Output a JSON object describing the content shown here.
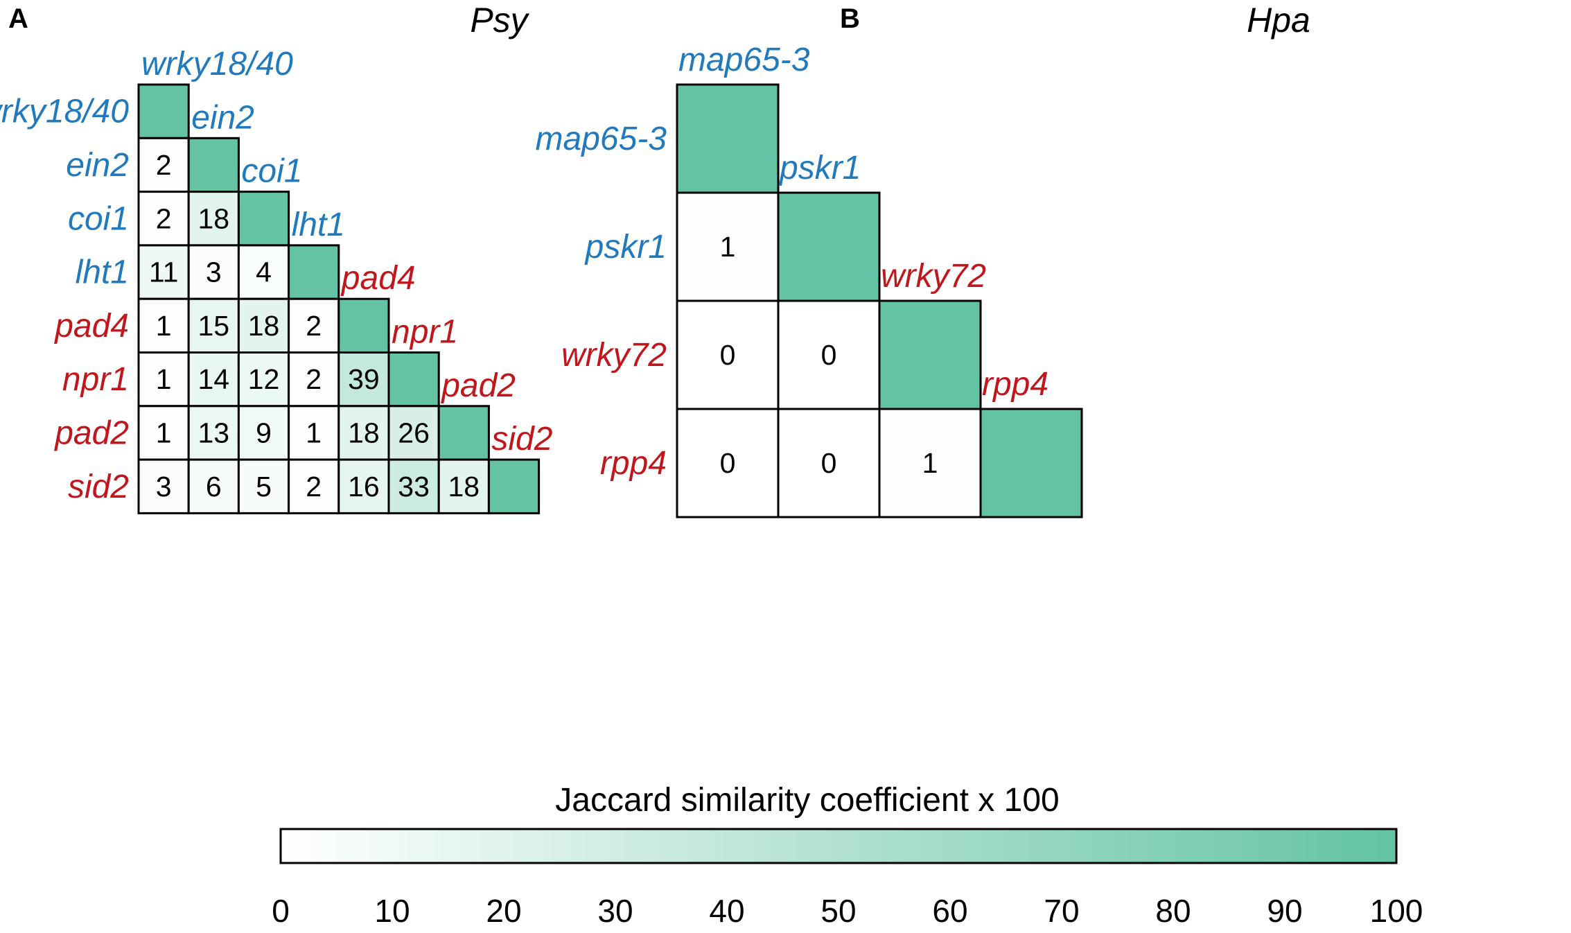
{
  "colors": {
    "blue": "#2179be",
    "red": "#c0161c",
    "min": "#ffffff",
    "max": "#64c3a5",
    "border": "#000000"
  },
  "chart_data": [
    {
      "type": "heatmap",
      "panel": "A",
      "title": "Psy",
      "genes": [
        "wrky18/40",
        "ein2",
        "coi1",
        "lht1",
        "pad4",
        "npr1",
        "pad2",
        "sid2"
      ],
      "gene_colors": [
        "blue",
        "blue",
        "blue",
        "blue",
        "red",
        "red",
        "red",
        "red"
      ],
      "values": [
        [
          100
        ],
        [
          2,
          100
        ],
        [
          2,
          18,
          100
        ],
        [
          11,
          3,
          4,
          100
        ],
        [
          1,
          15,
          18,
          2,
          100
        ],
        [
          1,
          14,
          12,
          2,
          39,
          100
        ],
        [
          1,
          13,
          9,
          1,
          18,
          26,
          100
        ],
        [
          3,
          6,
          5,
          2,
          16,
          33,
          18,
          100
        ]
      ]
    },
    {
      "type": "heatmap",
      "panel": "B",
      "title": "Hpa",
      "genes": [
        "map65-3",
        "pskr1",
        "wrky72",
        "rpp4"
      ],
      "gene_colors": [
        "blue",
        "blue",
        "red",
        "red"
      ],
      "values": [
        [
          100
        ],
        [
          1,
          100
        ],
        [
          0,
          0,
          100
        ],
        [
          0,
          0,
          1,
          100
        ]
      ]
    }
  ],
  "colorbar": {
    "title": "Jaccard similarity coefficient x 100",
    "range": [
      0,
      100
    ],
    "ticks": [
      "0",
      "10",
      "20",
      "30",
      "40",
      "50",
      "60",
      "70",
      "80",
      "90",
      "100"
    ]
  }
}
